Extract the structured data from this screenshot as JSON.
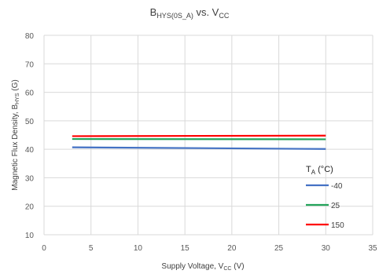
{
  "chart_data": {
    "type": "line",
    "title": {
      "main": "B",
      "main_sub": "HYS(0S_A)",
      "mid": " vs. V",
      "end_sub": "CC"
    },
    "xlabel": {
      "main": "Supply Voltage, V",
      "sub": "CC",
      "end": " (V)"
    },
    "ylabel": {
      "main": "Magnetic Flux Density, B",
      "sub": "HYS",
      "end": " (G)"
    },
    "xlim": [
      0,
      35
    ],
    "ylim": [
      10,
      80
    ],
    "x_ticks": [
      "0",
      "5",
      "10",
      "15",
      "20",
      "25",
      "30",
      "35"
    ],
    "y_ticks": [
      "10",
      "20",
      "30",
      "40",
      "50",
      "60",
      "70",
      "80"
    ],
    "x_tick_values": [
      0,
      5,
      10,
      15,
      20,
      25,
      30,
      35
    ],
    "y_tick_values": [
      10,
      20,
      30,
      40,
      50,
      60,
      70,
      80
    ],
    "grid": true,
    "legend": {
      "title_main": "T",
      "title_sub": "A",
      "title_end": " (°C)",
      "placement": "right"
    },
    "series": [
      {
        "name": "-40",
        "color": "#4472c4",
        "x": [
          3,
          30
        ],
        "y": [
          40.7,
          40.1
        ]
      },
      {
        "name": "25",
        "color": "#23a35a",
        "x": [
          3,
          30
        ],
        "y": [
          43.6,
          43.5
        ]
      },
      {
        "name": "150",
        "color": "#ff0000",
        "x": [
          3,
          30
        ],
        "y": [
          44.6,
          44.8
        ]
      }
    ]
  }
}
